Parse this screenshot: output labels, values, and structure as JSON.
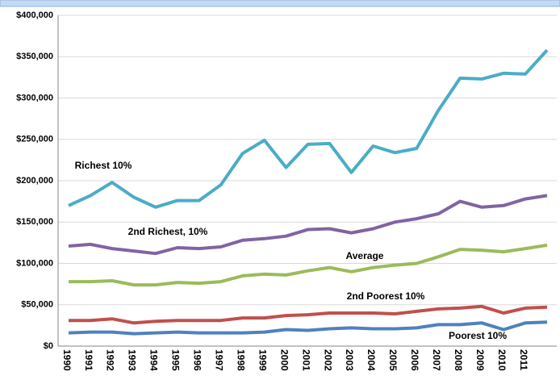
{
  "chart_data": {
    "type": "line",
    "categories": [
      "1990",
      "1991",
      "1992",
      "1993",
      "1994",
      "1995",
      "1996",
      "1997",
      "1998",
      "1999",
      "2000",
      "2001",
      "2002",
      "2003",
      "2004",
      "2005",
      "2006",
      "2007",
      "2008",
      "2009",
      "2010",
      "2011",
      null
    ],
    "series": [
      {
        "name": "Richest 10%",
        "color": "#4bacc6",
        "values": [
          170000,
          182000,
          198000,
          180000,
          168000,
          176000,
          176000,
          195000,
          233000,
          249000,
          216000,
          244000,
          245000,
          210000,
          242000,
          234000,
          239000,
          285000,
          324000,
          323000,
          330000,
          329000,
          358000
        ]
      },
      {
        "name": "2nd Richest, 10%",
        "color": "#8064a2",
        "values": [
          121000,
          123000,
          118000,
          115000,
          112000,
          119000,
          118000,
          120000,
          128000,
          130000,
          133000,
          141000,
          142000,
          137000,
          142000,
          150000,
          154000,
          160000,
          175000,
          168000,
          170000,
          178000,
          182000
        ]
      },
      {
        "name": "Average",
        "color": "#9bbb59",
        "values": [
          78000,
          78000,
          79000,
          74000,
          74000,
          77000,
          76000,
          78000,
          85000,
          87000,
          86000,
          91000,
          95000,
          90000,
          95000,
          98000,
          100000,
          108000,
          117000,
          116000,
          114000,
          118000,
          122000
        ]
      },
      {
        "name": "2nd Poorest 10%",
        "color": "#c0504d",
        "values": [
          31000,
          31000,
          33000,
          28000,
          30000,
          31000,
          31000,
          31000,
          34000,
          34000,
          37000,
          38000,
          40000,
          40000,
          40000,
          39000,
          42000,
          45000,
          46000,
          48000,
          40000,
          46000,
          47000
        ]
      },
      {
        "name": "Poorest 10%",
        "color": "#4f81bd",
        "values": [
          16000,
          17000,
          17000,
          15000,
          16000,
          17000,
          16000,
          16000,
          16000,
          17000,
          20000,
          19000,
          21000,
          22000,
          21000,
          21000,
          22000,
          26000,
          26000,
          28000,
          20000,
          28000,
          29000
        ]
      }
    ],
    "ylim": [
      0,
      400000
    ],
    "yticks": [
      {
        "value": 0,
        "label": "$0"
      },
      {
        "value": 50000,
        "label": "$50,000"
      },
      {
        "value": 100000,
        "label": "$100,000"
      },
      {
        "value": 150000,
        "label": "$150,000"
      },
      {
        "value": 200000,
        "label": "$200,000"
      },
      {
        "value": 250000,
        "label": "$250,000"
      },
      {
        "value": 300000,
        "label": "$300,000"
      },
      {
        "value": 350000,
        "label": "$350,000"
      },
      {
        "value": 400000,
        "label": "$400,000"
      }
    ],
    "grid": true
  }
}
